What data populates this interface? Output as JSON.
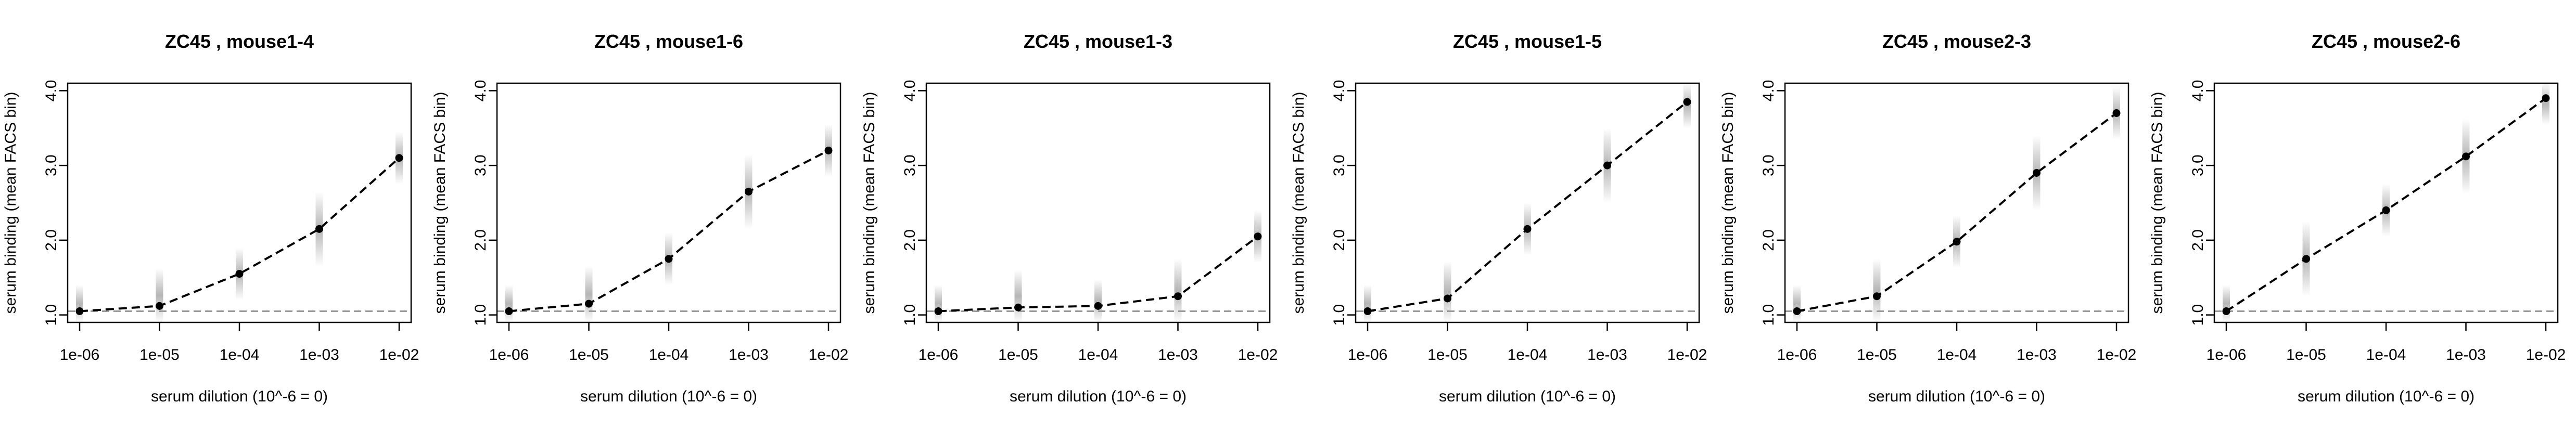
{
  "chart_data": [
    {
      "type": "line",
      "title": "ZC45 , mouse1-4",
      "xlabel": "serum dilution (10^-6 = 0)",
      "ylabel": "serum binding (mean FACS bin)",
      "x_tick_labels": [
        "1e-06",
        "1e-05",
        "1e-04",
        "1e-03",
        "1e-02"
      ],
      "y_tick_labels": [
        "1.0",
        "2.0",
        "3.0",
        "4.0"
      ],
      "ylim": [
        0.9,
        4.1
      ],
      "baseline": 1.05,
      "series": [
        {
          "values": [
            1.05,
            1.12,
            1.55,
            2.15,
            3.1
          ]
        }
      ]
    },
    {
      "type": "line",
      "title": "ZC45 , mouse1-6",
      "xlabel": "serum dilution (10^-6 = 0)",
      "ylabel": "serum binding (mean FACS bin)",
      "x_tick_labels": [
        "1e-06",
        "1e-05",
        "1e-04",
        "1e-03",
        "1e-02"
      ],
      "y_tick_labels": [
        "1.0",
        "2.0",
        "3.0",
        "4.0"
      ],
      "ylim": [
        0.9,
        4.1
      ],
      "baseline": 1.05,
      "series": [
        {
          "values": [
            1.05,
            1.15,
            1.75,
            2.65,
            3.2
          ]
        }
      ]
    },
    {
      "type": "line",
      "title": "ZC45 , mouse1-3",
      "xlabel": "serum dilution (10^-6 = 0)",
      "ylabel": "serum binding (mean FACS bin)",
      "x_tick_labels": [
        "1e-06",
        "1e-05",
        "1e-04",
        "1e-03",
        "1e-02"
      ],
      "y_tick_labels": [
        "1.0",
        "2.0",
        "3.0",
        "4.0"
      ],
      "ylim": [
        0.9,
        4.1
      ],
      "baseline": 1.05,
      "series": [
        {
          "values": [
            1.05,
            1.1,
            1.12,
            1.25,
            2.05
          ]
        }
      ]
    },
    {
      "type": "line",
      "title": "ZC45 , mouse1-5",
      "xlabel": "serum dilution (10^-6 = 0)",
      "ylabel": "serum binding (mean FACS bin)",
      "x_tick_labels": [
        "1e-06",
        "1e-05",
        "1e-04",
        "1e-03",
        "1e-02"
      ],
      "y_tick_labels": [
        "1.0",
        "2.0",
        "3.0",
        "4.0"
      ],
      "ylim": [
        0.9,
        4.1
      ],
      "baseline": 1.05,
      "series": [
        {
          "values": [
            1.05,
            1.22,
            2.15,
            3.0,
            3.85
          ]
        }
      ]
    },
    {
      "type": "line",
      "title": "ZC45 , mouse2-3",
      "xlabel": "serum dilution (10^-6 = 0)",
      "ylabel": "serum binding (mean FACS bin)",
      "x_tick_labels": [
        "1e-06",
        "1e-05",
        "1e-04",
        "1e-03",
        "1e-02"
      ],
      "y_tick_labels": [
        "1.0",
        "2.0",
        "3.0",
        "4.0"
      ],
      "ylim": [
        0.9,
        4.1
      ],
      "baseline": 1.05,
      "series": [
        {
          "values": [
            1.05,
            1.25,
            1.98,
            2.9,
            3.7
          ]
        }
      ]
    },
    {
      "type": "line",
      "title": "ZC45 , mouse2-6",
      "xlabel": "serum dilution (10^-6 = 0)",
      "ylabel": "serum binding (mean FACS bin)",
      "x_tick_labels": [
        "1e-06",
        "1e-05",
        "1e-04",
        "1e-03",
        "1e-02"
      ],
      "y_tick_labels": [
        "1.0",
        "2.0",
        "3.0",
        "4.0"
      ],
      "ylim": [
        0.9,
        4.1
      ],
      "baseline": 1.05,
      "series": [
        {
          "values": [
            1.05,
            1.75,
            2.4,
            3.12,
            3.9
          ]
        }
      ]
    }
  ],
  "colors": {
    "line": "#000000",
    "points": "#000000",
    "baseline": "#999999",
    "distribution": "#888888"
  }
}
